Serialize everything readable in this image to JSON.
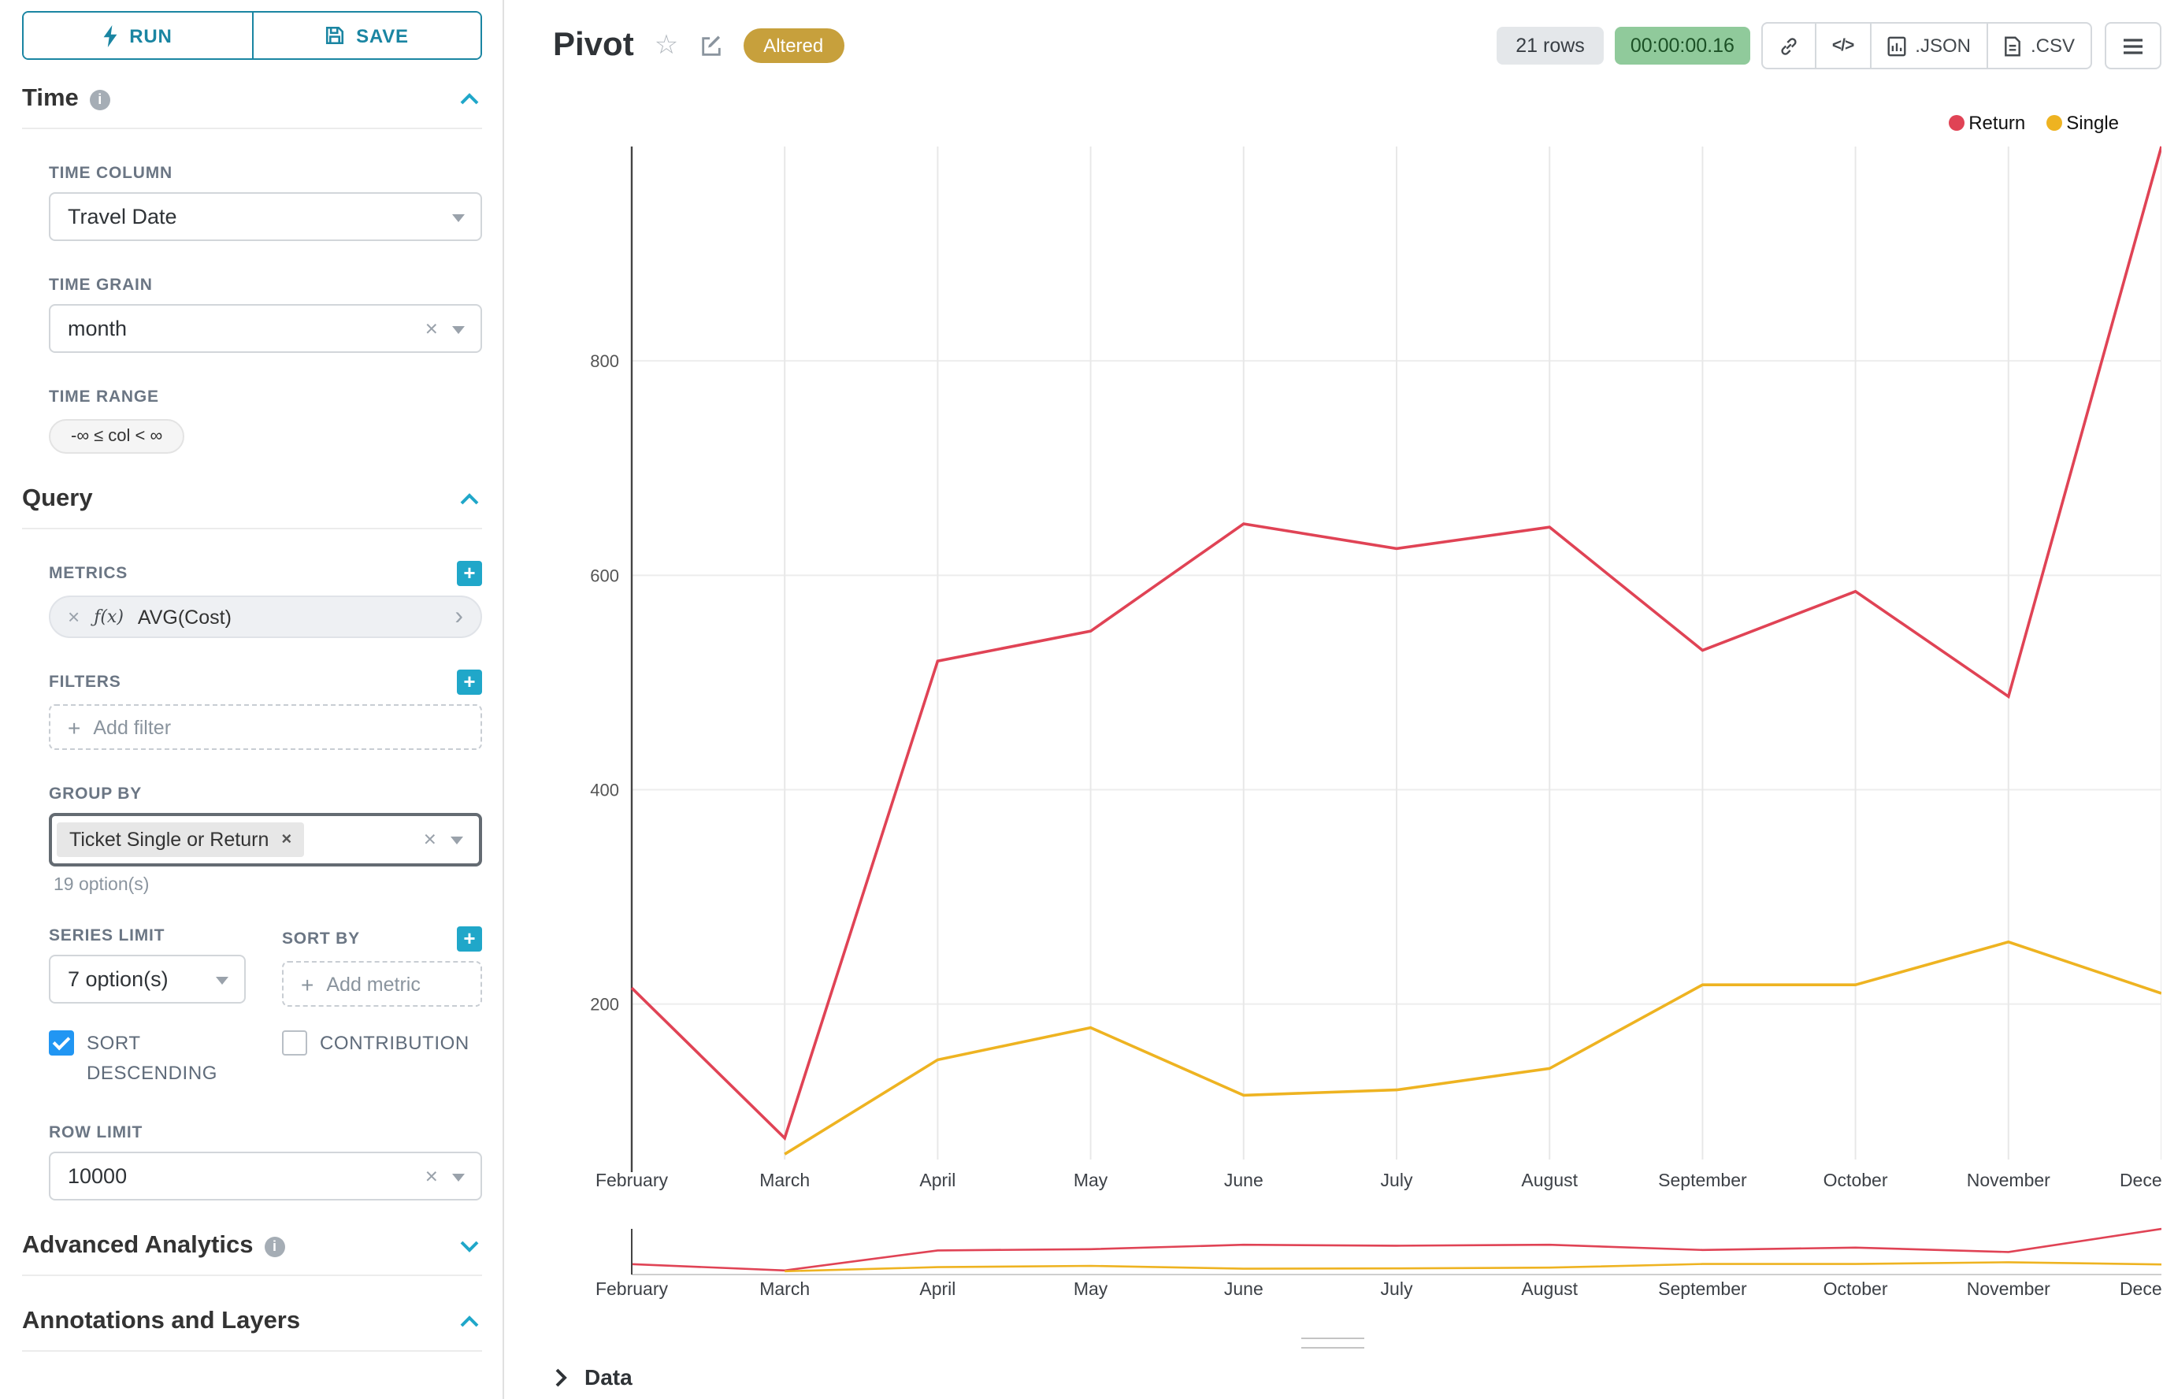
{
  "app": {
    "accent_color": "#20a7c9",
    "button_teal": "#1a85a2",
    "checkbox_blue": "#2196f3",
    "altered_gold": "#c7a03c",
    "timer_green_bg": "#90ca9b"
  },
  "toolbar": {
    "run_label": "RUN",
    "save_label": "SAVE"
  },
  "sidebar": {
    "time_title": "Time",
    "time_column_label": "TIME COLUMN",
    "time_column_value": "Travel Date",
    "time_grain_label": "TIME GRAIN",
    "time_grain_value": "month",
    "time_range_label": "TIME RANGE",
    "time_range_value": "-∞ ≤ col < ∞",
    "query_title": "Query",
    "metrics_label": "METRICS",
    "metric_fx": "ƒ(x)",
    "metric_value": "AVG(Cost)",
    "filters_label": "FILTERS",
    "add_filter_placeholder": "Add filter",
    "group_by_label": "GROUP BY",
    "group_by_tag": "Ticket Single or Return",
    "group_by_options_hint": "19 option(s)",
    "series_limit_label": "SERIES LIMIT",
    "series_limit_value": "7 option(s)",
    "sort_by_label": "SORT BY",
    "add_metric_placeholder": "Add metric",
    "sort_descending_label": "SORT DESCENDING",
    "sort_descending_checked": true,
    "contribution_label": "CONTRIBUTION",
    "contribution_checked": false,
    "row_limit_label": "ROW LIMIT",
    "row_limit_value": "10000",
    "advanced_analytics_title": "Advanced Analytics",
    "annotations_title": "Annotations and Layers"
  },
  "header": {
    "title": "Pivot",
    "altered_badge": "Altered",
    "rows_badge": "21 rows",
    "timer_badge": "00:00:00.16",
    "json_button": ".JSON",
    "csv_button": ".CSV"
  },
  "data_panel": {
    "title": "Data"
  },
  "icons": {
    "run": "bolt-icon",
    "save": "save-icon",
    "section_collapse": "chevron-up-icon",
    "section_expand": "chevron-down-icon",
    "info": "info-icon",
    "add": "plus-icon",
    "clear": "x-icon",
    "dropdown": "caret-down-icon",
    "metric_function": "fx-icon",
    "favorite": "star-icon",
    "edit": "edit-icon",
    "share": "link-icon",
    "embed": "code-icon",
    "json_export": "chart-file-icon",
    "csv_export": "file-icon",
    "menu": "hamburger-icon",
    "expand_data": "chevron-right-icon"
  },
  "chart_data": {
    "type": "line",
    "title": "Pivot",
    "x": [
      "February",
      "March",
      "April",
      "May",
      "June",
      "July",
      "August",
      "September",
      "October",
      "November",
      "December"
    ],
    "series": [
      {
        "name": "Return",
        "color": "#e04355",
        "values": [
          215,
          75,
          520,
          548,
          648,
          625,
          645,
          530,
          585,
          487,
          1000
        ]
      },
      {
        "name": "Single",
        "color": "#eeb321",
        "values": [
          null,
          60,
          148,
          178,
          115,
          120,
          140,
          218,
          218,
          258,
          210
        ]
      }
    ],
    "xlabel": "",
    "ylabel": "",
    "ylim": [
      55,
      1000
    ],
    "yticks": [
      200,
      400,
      600,
      800
    ],
    "grid": true,
    "legend_position": "top-right",
    "has_mini_brush_chart": true
  }
}
